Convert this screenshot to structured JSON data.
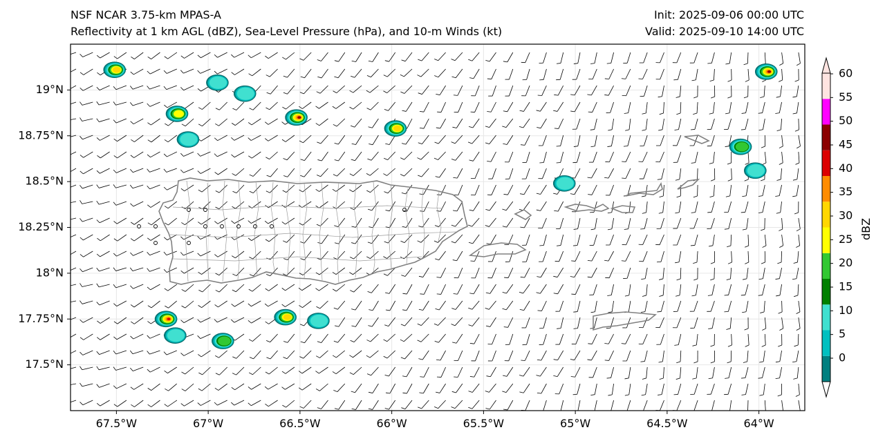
{
  "header": {
    "title_line1": "NSF NCAR 3.75-km MPAS-A",
    "title_line2": "Reflectivity at 1 km AGL (dBZ), Sea-Level Pressure (hPa), and 10-m Winds (kt)",
    "init": "Init: 2025-09-06 00:00 UTC",
    "valid": "Valid: 2025-09-10 14:00 UTC"
  },
  "map": {
    "lon_ticks": [
      "67.5°W",
      "67°W",
      "66.5°W",
      "66°W",
      "65.5°W",
      "65°W",
      "64.5°W",
      "64°W"
    ],
    "lat_ticks": [
      "19°N",
      "18.75°N",
      "18.5°N",
      "18.25°N",
      "18°N",
      "17.75°N",
      "17.5°N"
    ],
    "lon_range": [
      -67.75,
      -63.75
    ],
    "lat_range": [
      17.25,
      19.25
    ],
    "wind_barb_color": "#000000",
    "coastline_color": "#808080"
  },
  "colorbar": {
    "label": "dBZ",
    "ticks": [
      "0",
      "5",
      "10",
      "15",
      "20",
      "25",
      "30",
      "35",
      "40",
      "45",
      "50",
      "55",
      "60"
    ],
    "colors": [
      "#008080",
      "#00c0c0",
      "#40e0d0",
      "#008000",
      "#32c832",
      "#ffff00",
      "#ffd700",
      "#ff8c00",
      "#dc0000",
      "#8b0000",
      "#ff00ff",
      "#ffe4e1"
    ]
  },
  "echoes": [
    {
      "lon": -67.51,
      "lat": 19.11,
      "peak": 30
    },
    {
      "lon": -66.95,
      "lat": 19.04,
      "peak": 10
    },
    {
      "lon": -66.8,
      "lat": 18.98,
      "peak": 10
    },
    {
      "lon": -67.17,
      "lat": 18.87,
      "peak": 25
    },
    {
      "lon": -67.11,
      "lat": 18.73,
      "peak": 10
    },
    {
      "lon": -66.52,
      "lat": 18.85,
      "peak": 45
    },
    {
      "lon": -65.98,
      "lat": 18.79,
      "peak": 30
    },
    {
      "lon": -65.06,
      "lat": 18.49,
      "peak": 10
    },
    {
      "lon": -63.96,
      "lat": 19.1,
      "peak": 45
    },
    {
      "lon": -64.1,
      "lat": 18.69,
      "peak": 20
    },
    {
      "lon": -64.02,
      "lat": 18.56,
      "peak": 10
    },
    {
      "lon": -67.23,
      "lat": 17.75,
      "peak": 40
    },
    {
      "lon": -66.58,
      "lat": 17.76,
      "peak": 30
    },
    {
      "lon": -66.4,
      "lat": 17.74,
      "peak": 10
    },
    {
      "lon": -66.92,
      "lat": 17.63,
      "peak": 20
    },
    {
      "lon": -67.18,
      "lat": 17.66,
      "peak": 10
    }
  ]
}
